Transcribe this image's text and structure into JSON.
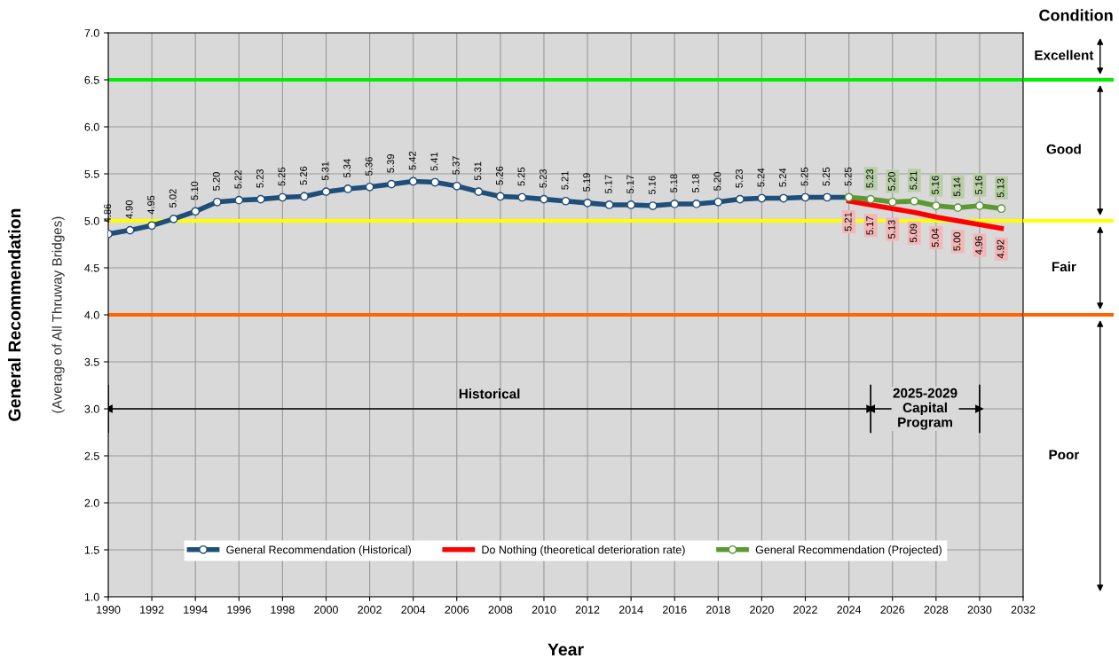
{
  "chart_data": {
    "type": "line",
    "xlabel": "Year",
    "ylabel": "General Recommendation",
    "x": [
      1990,
      1991,
      1992,
      1993,
      1994,
      1995,
      1996,
      1997,
      1998,
      1999,
      2000,
      2001,
      2002,
      2003,
      2004,
      2005,
      2006,
      2007,
      2008,
      2009,
      2010,
      2011,
      2012,
      2013,
      2014,
      2015,
      2016,
      2017,
      2018,
      2019,
      2020,
      2021,
      2022,
      2023,
      2024
    ],
    "series": [
      {
        "name": "General Recommendation (Historical)",
        "color": "#1f4e79",
        "marker": "circle",
        "values": [
          4.86,
          4.9,
          4.95,
          5.02,
          5.1,
          5.2,
          5.22,
          5.23,
          5.25,
          5.26,
          5.31,
          5.34,
          5.36,
          5.39,
          5.42,
          5.41,
          5.37,
          5.31,
          5.26,
          5.25,
          5.23,
          5.21,
          5.19,
          5.17,
          5.17,
          5.16,
          5.18,
          5.18,
          5.2,
          5.23,
          5.24,
          5.24,
          5.25,
          5.25,
          5.25
        ],
        "value_labels": [
          "4.86",
          "4.90",
          "4.95",
          "5.02",
          "5.10",
          "5.20",
          "5.22",
          "5.23",
          "5.25",
          "5.26",
          "5.31",
          "5.34",
          "5.36",
          "5.39",
          "5.42",
          "5.41",
          "5.37",
          "5.31",
          "5.26",
          "5.25",
          "5.23",
          "5.21",
          "5.19",
          "5.17",
          "5.17",
          "5.16",
          "5.18",
          "5.18",
          "5.20",
          "5.23",
          "5.24",
          "5.24",
          "5.25",
          "5.25",
          "5.25"
        ]
      },
      {
        "name": "Do Nothing (theoretical deterioration rate)",
        "color": "#ff0000",
        "marker": "none",
        "x": [
          2024,
          2025,
          2026,
          2027,
          2028,
          2029,
          2030,
          2031
        ],
        "values": [
          5.21,
          5.17,
          5.13,
          5.09,
          5.04,
          5.0,
          4.96,
          4.92
        ],
        "value_labels": [
          "5.21",
          "5.17",
          "5.13",
          "5.09",
          "5.04",
          "5.00",
          "4.96",
          "4.92"
        ]
      },
      {
        "name": "General Recommendation (Projected)",
        "color": "#5b9a32",
        "marker": "circle",
        "x": [
          2024,
          2025,
          2026,
          2027,
          2028,
          2029,
          2030,
          2031
        ],
        "values": [
          5.25,
          5.23,
          5.2,
          5.21,
          5.16,
          5.14,
          5.16,
          5.13
        ],
        "value_labels": [
          null,
          "5.23",
          "5.20",
          "5.21",
          "5.16",
          "5.14",
          "5.16",
          "5.13"
        ]
      }
    ],
    "xlim": [
      1990,
      2032
    ],
    "xticks": [
      1990,
      1992,
      1994,
      1996,
      1998,
      2000,
      2002,
      2004,
      2006,
      2008,
      2010,
      2012,
      2014,
      2016,
      2018,
      2020,
      2022,
      2024,
      2026,
      2028,
      2030,
      2032
    ],
    "ylim": [
      1.0,
      7.0
    ],
    "yticks": [
      {
        "value": 1.0,
        "label": "1.0"
      },
      1.5,
      {
        "value": 2.0,
        "label": "2.0"
      },
      2.5,
      {
        "value": 3.0,
        "label": "3.0"
      },
      3.5,
      {
        "value": 4.0,
        "label": "4.0"
      },
      4.5,
      {
        "value": 5.0,
        "label": "5.0"
      },
      5.5,
      {
        "value": 6.0,
        "label": "6.0"
      },
      6.5,
      {
        "value": 7.0,
        "label": "7.0"
      }
    ],
    "grid": true,
    "legend": "bottom",
    "ref_lines": [
      {
        "axis": "y",
        "value": 6.5,
        "color": "#00ee00"
      },
      {
        "axis": "y",
        "value": 5.0,
        "color": "#ffff00"
      },
      {
        "axis": "y",
        "value": 4.0,
        "color": "#ff6600"
      },
      {
        "axis": "x",
        "value": 2025,
        "color": "#000000"
      },
      {
        "axis": "x",
        "value": 2030,
        "color": "#000000"
      }
    ],
    "annotations": [
      "(Average of All Thruway Bridges)",
      "Condition",
      "Excellent",
      "Good",
      "Fair",
      "Poor",
      "Historical",
      "2025-2029\nCapital\nProgram"
    ]
  }
}
